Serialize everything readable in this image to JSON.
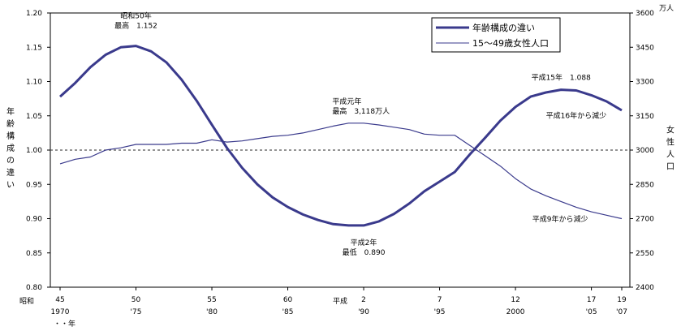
{
  "chart_data": {
    "type": "line",
    "legend_position": "top-right",
    "grid": false,
    "x_range": [
      1970,
      2007
    ],
    "y_left": {
      "label": "年齢構成の違い",
      "range": [
        0.8,
        1.2
      ],
      "ticks": [
        "0.80",
        "0.85",
        "0.90",
        "0.95",
        "1.00",
        "1.05",
        "1.10",
        "1.15",
        "1.20"
      ],
      "reference_line": 1.0
    },
    "y_right": {
      "label": "女性人口",
      "unit": "万人",
      "range": [
        2400,
        3600
      ],
      "ticks": [
        "2400",
        "2550",
        "2700",
        "2850",
        "3000",
        "3150",
        "3300",
        "3450",
        "3600"
      ]
    },
    "x_ticks": [
      {
        "year": 1970,
        "top": "45",
        "bottom": "1970"
      },
      {
        "year": 1975,
        "top": "50",
        "bottom": "'75"
      },
      {
        "year": 1980,
        "top": "55",
        "bottom": "'80"
      },
      {
        "year": 1985,
        "top": "60",
        "bottom": "'85"
      },
      {
        "year": 1990,
        "top": "2",
        "bottom": "'90"
      },
      {
        "year": 1995,
        "top": "7",
        "bottom": "'95"
      },
      {
        "year": 2000,
        "top": "12",
        "bottom": "2000"
      },
      {
        "year": 2005,
        "top": "17",
        "bottom": "'05"
      },
      {
        "year": 2007,
        "top": "19",
        "bottom": "'07"
      }
    ],
    "x_era_labels": {
      "showa": "昭和",
      "heisei": "平成",
      "year_unit": "・・年"
    },
    "series": [
      {
        "name": "年齢構成の違い",
        "axis": "left",
        "color": "#3a3a8c",
        "x": [
          1970,
          1971,
          1972,
          1973,
          1974,
          1975,
          1976,
          1977,
          1978,
          1979,
          1980,
          1981,
          1982,
          1983,
          1984,
          1985,
          1986,
          1987,
          1988,
          1989,
          1990,
          1991,
          1992,
          1993,
          1994,
          1995,
          1996,
          1997,
          1998,
          1999,
          2000,
          2001,
          2002,
          2003,
          2004,
          2005,
          2006,
          2007
        ],
        "values": [
          1.078,
          1.098,
          1.121,
          1.139,
          1.15,
          1.152,
          1.144,
          1.128,
          1.103,
          1.072,
          1.037,
          1.003,
          0.974,
          0.95,
          0.931,
          0.917,
          0.906,
          0.898,
          0.892,
          0.89,
          0.89,
          0.896,
          0.907,
          0.922,
          0.94,
          0.954,
          0.968,
          0.994,
          1.018,
          1.043,
          1.063,
          1.078,
          1.084,
          1.088,
          1.087,
          1.08,
          1.071,
          1.058
        ]
      },
      {
        "name": "15～49歳女性人口",
        "axis": "right",
        "color": "#3a3a8c",
        "x": [
          1970,
          1971,
          1972,
          1973,
          1974,
          1975,
          1976,
          1977,
          1978,
          1979,
          1980,
          1981,
          1982,
          1983,
          1984,
          1985,
          1986,
          1987,
          1988,
          1989,
          1990,
          1991,
          1992,
          1993,
          1994,
          1995,
          1996,
          1997,
          1998,
          1999,
          2000,
          2001,
          2002,
          2003,
          2004,
          2005,
          2006,
          2007
        ],
        "values": [
          2940,
          2960,
          2970,
          3000,
          3010,
          3025,
          3025,
          3025,
          3030,
          3030,
          3045,
          3035,
          3040,
          3050,
          3060,
          3065,
          3075,
          3090,
          3105,
          3118,
          3118,
          3110,
          3100,
          3090,
          3070,
          3065,
          3065,
          3020,
          2975,
          2930,
          2875,
          2830,
          2800,
          2775,
          2750,
          2730,
          2715,
          2700
        ]
      }
    ],
    "annotations": [
      {
        "lines": [
          "昭和50年",
          "最高　1.152"
        ],
        "x": 1975,
        "y": 1.152,
        "axis": "left",
        "align": "middle",
        "dy": -34
      },
      {
        "lines": [
          "平成元年",
          "最高　3,118万人"
        ],
        "x": 1989,
        "y": 3118,
        "axis": "right",
        "align": "start",
        "dy": -24,
        "dx": -20
      },
      {
        "lines": [
          "平成2年",
          "最低　0.890"
        ],
        "x": 1990,
        "y": 0.89,
        "axis": "left",
        "align": "middle",
        "dy": 24
      },
      {
        "lines": [
          "平成15年　1.088"
        ],
        "x": 2003,
        "y": 1.088,
        "axis": "left",
        "align": "middle",
        "dy": -12
      },
      {
        "lines": [
          "平成16年から減少"
        ],
        "x": 2004,
        "y": 1.087,
        "axis": "left",
        "align": "middle",
        "dy": 34
      },
      {
        "lines": [
          "平成9年から減少"
        ],
        "x": 2001,
        "y": 2830,
        "axis": "right",
        "align": "start",
        "dy": 40,
        "dx": 2
      }
    ]
  }
}
